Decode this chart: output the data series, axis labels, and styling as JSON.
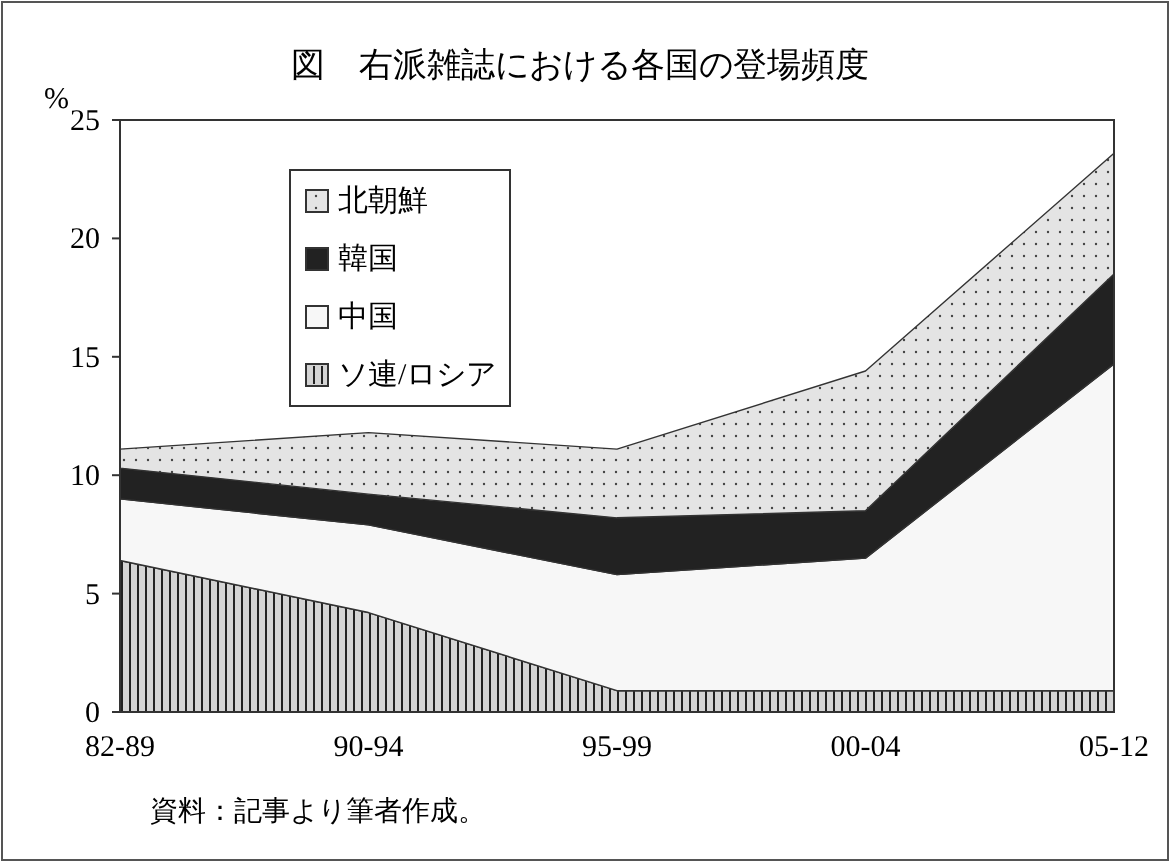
{
  "chart_data": {
    "type": "area",
    "stacked": true,
    "title": "図　右派雑誌における各国の登場頻度",
    "ylabel": "%",
    "categories": [
      "82-89",
      "90-94",
      "95-99",
      "00-04",
      "05-12"
    ],
    "series": [
      {
        "name": "ソ連/ロシア",
        "color": "#d4d4d4",
        "values": [
          6.4,
          4.2,
          0.9,
          0.9,
          0.9
        ]
      },
      {
        "name": "中国",
        "color": "#f7f7f7",
        "values": [
          2.6,
          3.7,
          4.9,
          5.6,
          13.8
        ]
      },
      {
        "name": "韓国",
        "color": "#222222",
        "values": [
          1.3,
          1.3,
          2.4,
          2.0,
          3.8
        ]
      },
      {
        "name": "北朝鮮",
        "color": "#e4e4e4",
        "values": [
          0.8,
          2.6,
          2.9,
          5.9,
          5.1
        ]
      }
    ],
    "ylim": [
      0,
      25
    ],
    "yticks": [
      0,
      5,
      10,
      15,
      20,
      25
    ],
    "grid": false,
    "legend": "top left",
    "annotations": [
      "資料：記事より筆者作成。"
    ]
  }
}
